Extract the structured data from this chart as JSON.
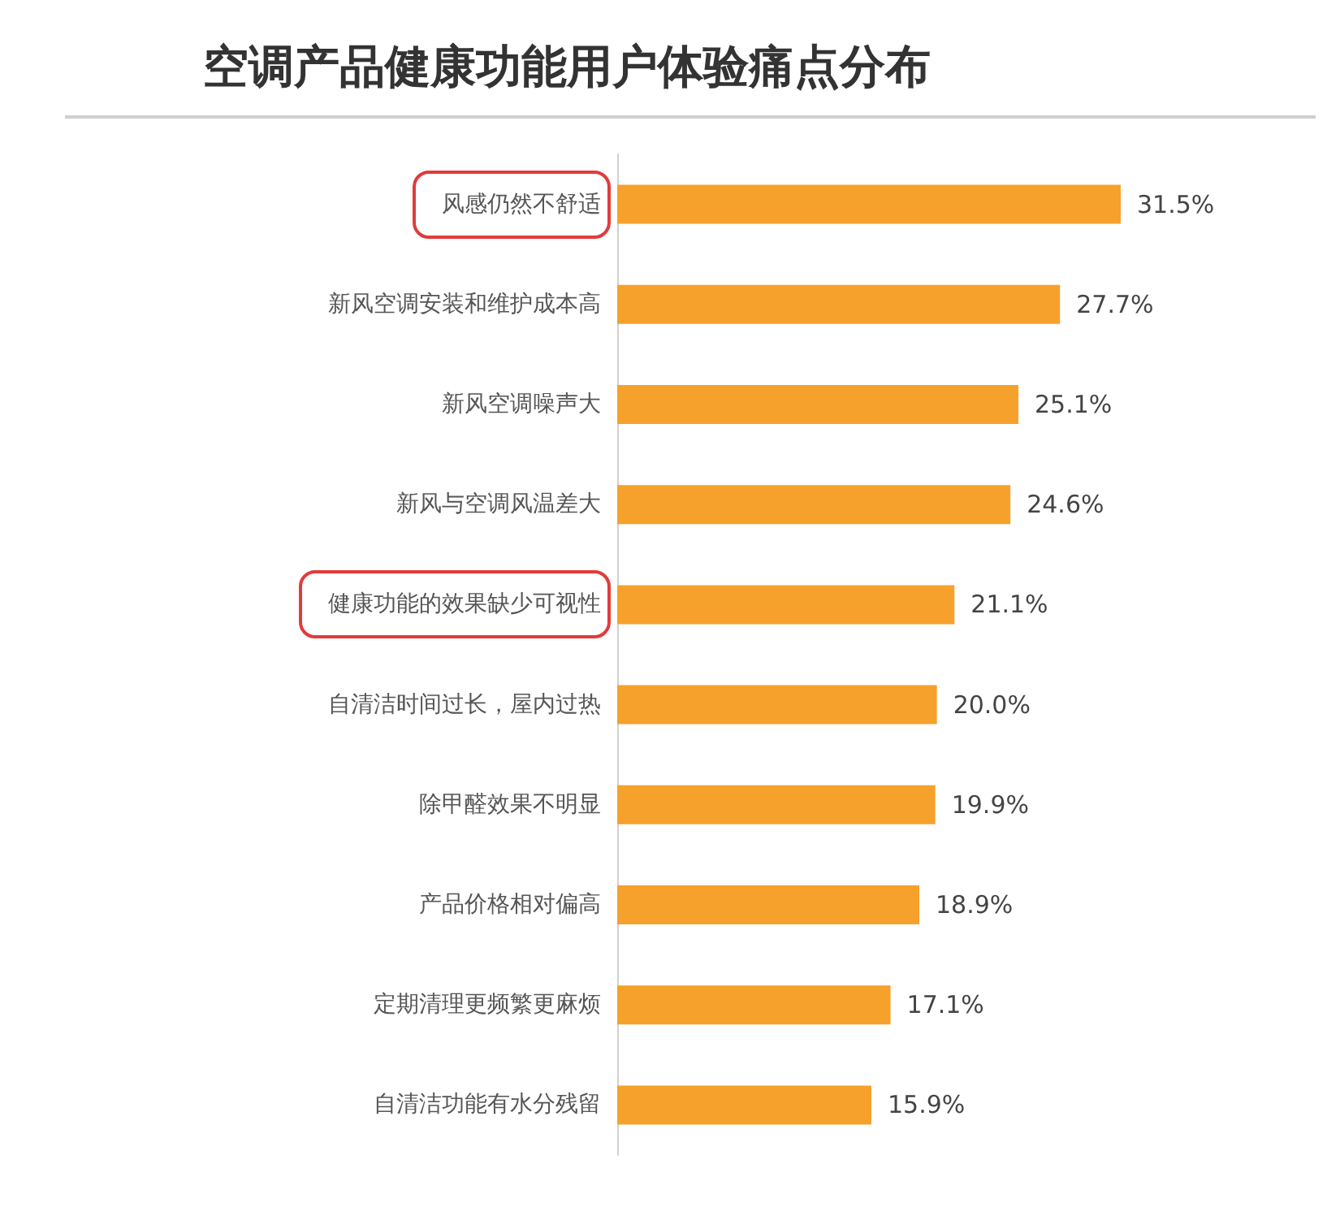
{
  "chart_data": {
    "type": "bar",
    "orientation": "horizontal",
    "title": "空调产品健康功能用户体验痛点分布",
    "categories": [
      "风感仍然不舒适",
      "新风空调安装和维护成本高",
      "新风空调噪声大",
      "新风与空调风温差大",
      "健康功能的效果缺少可视性",
      "自清洁时间过长，屋内过热",
      "除甲醛效果不明显",
      "产品价格相对偏高",
      "定期清理更频繁更麻烦",
      "自清洁功能有水分残留"
    ],
    "values": [
      31.5,
      27.7,
      25.1,
      24.6,
      21.1,
      20.0,
      19.9,
      18.9,
      17.1,
      15.9
    ],
    "value_labels": [
      "31.5%",
      "27.7%",
      "25.1%",
      "24.6%",
      "21.1%",
      "20.0%",
      "19.9%",
      "18.9%",
      "17.1%",
      "15.9%"
    ],
    "color": "#f6a12b"
  }
}
